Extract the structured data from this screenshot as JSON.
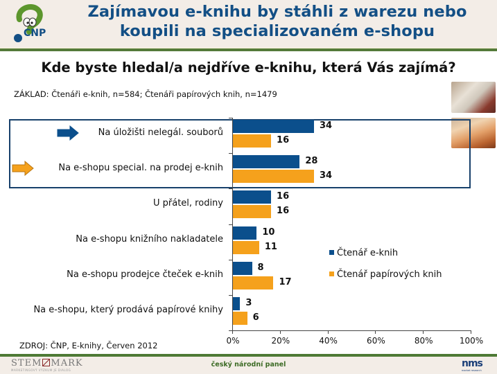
{
  "header": {
    "logo_text": "CNP",
    "title_line1": "Zajímavou e-knihu by stáhli z warezu nebo",
    "title_line2": "koupili na specializovaném e-shopu"
  },
  "question": "Kde byste hledal/a nejdříve e-knihu, která Vás zajímá?",
  "base": "ZÁKLAD: Čtenáři e-knih, n=584; Čtenáři papírových knih, n=1479",
  "source": "ZDROJ: ČNP, E-knihy, Červen 2012",
  "colors": {
    "ebook": "#0b4f8c",
    "paper": "#f5a11c",
    "title": "#134f85",
    "header_bg": "#f3ede7",
    "rule": "#547a3a"
  },
  "footer": {
    "left_logo": "STEMMARK",
    "left_logo_sub": "MARKETINGOVÝ VÝZKUM JE DIALOG",
    "center": "český národní panel",
    "right_logo": "nms",
    "right_logo_sub": "market research"
  },
  "chart_data": {
    "type": "bar",
    "orientation": "horizontal",
    "title": "Kde byste hledal/a nejdříve e-knihu, která Vás zajímá?",
    "categories": [
      "Na úložišti nelegál. souborů",
      "Na e-shopu special. na prodej e-knih",
      "U přátel, rodiny",
      "Na e-shopu knižního nakladatele",
      "Na e-shopu prodejce čteček e-knih",
      "Na e-shopu, který prodává papírové knihy"
    ],
    "series": [
      {
        "name": "Čtenář e-knih",
        "color": "#0b4f8c",
        "values": [
          34,
          28,
          16,
          10,
          8,
          3
        ]
      },
      {
        "name": "Čtenář papírových knih",
        "color": "#f5a11c",
        "values": [
          16,
          34,
          16,
          11,
          17,
          6
        ]
      }
    ],
    "x_ticks": [
      "0%",
      "20%",
      "40%",
      "60%",
      "80%",
      "100%"
    ],
    "xlim": [
      0,
      100
    ],
    "xlabel": "",
    "ylabel": "",
    "grid": false,
    "legend_position": "right",
    "highlighted_categories": [
      0,
      1
    ],
    "arrows": [
      {
        "category": 0,
        "color": "#0b4f8c"
      },
      {
        "category": 1,
        "color": "#f5a11c"
      }
    ]
  }
}
